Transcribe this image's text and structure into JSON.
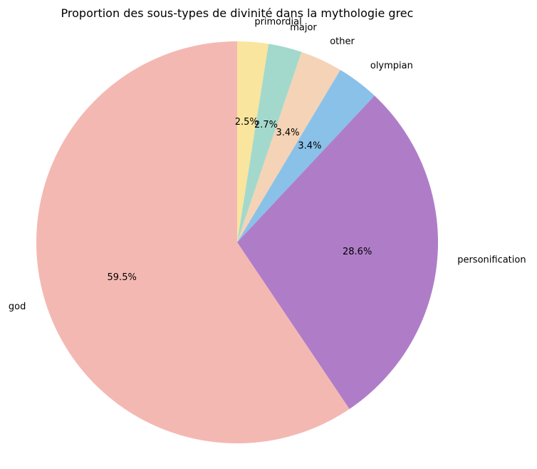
{
  "chart_data": {
    "type": "pie",
    "title": "Proportion des sous-types de divinité dans la mythologie grec",
    "start_angle_deg": 90,
    "direction": "clockwise",
    "slices": [
      {
        "label": "primordial",
        "pct": 2.5,
        "pct_label": "2.5%",
        "color": "#f9e59e"
      },
      {
        "label": "major",
        "pct": 2.7,
        "pct_label": "2.7%",
        "color": "#a3d9cc"
      },
      {
        "label": "other",
        "pct": 3.4,
        "pct_label": "3.4%",
        "color": "#f5d3b6"
      },
      {
        "label": "olympian",
        "pct": 3.4,
        "pct_label": "3.4%",
        "color": "#89c1e8"
      },
      {
        "label": "personification",
        "pct": 28.6,
        "pct_label": "28.6%",
        "color": "#af7dc7"
      },
      {
        "label": "god",
        "pct": 59.5,
        "pct_label": "59.5%",
        "color": "#f4b8b3"
      }
    ]
  }
}
